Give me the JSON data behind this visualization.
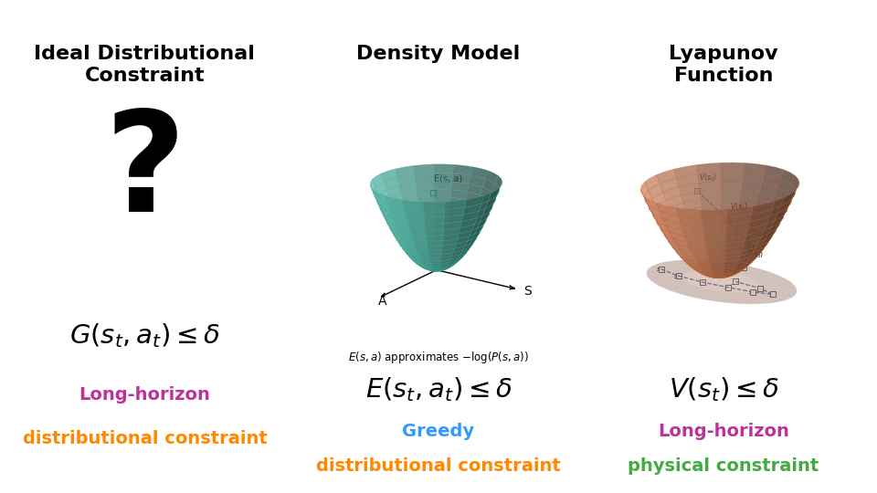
{
  "bg_color": "#ffffff",
  "title1": "Ideal Distributional\nConstraint",
  "title2": "Density Model",
  "title3": "Lyapunov\nFunction",
  "title_fontsize": 16,
  "title_fontweight": "bold",
  "question_mark": "?",
  "question_fontsize": 110,
  "formula1": "$G(s_t, a_t) \\leq \\delta$",
  "formula2": "$E(s_t, a_t) \\leq \\delta$",
  "formula3": "$V(s_t) \\leq \\delta$",
  "formula_fontsize": 21,
  "label1_line1": "Long-horizon",
  "label1_line2": "distributional constraint",
  "label1_color1": "#bb3399",
  "label1_color2": "#ff8800",
  "label2_line1": "Greedy",
  "label2_line2": "distributional constraint",
  "label2_color1": "#3399ff",
  "label2_color2": "#ff8800",
  "label3_line1": "Long-horizon",
  "label3_line2": "physical constraint",
  "label3_color1": "#bb3399",
  "label3_color2": "#44aa44",
  "label_fontsize": 14,
  "bowl_teal_color": "#5ecfbe",
  "bowl_teal_edge": "#3aab96",
  "bowl_orange_color": "#e8956d",
  "bowl_orange_edge": "#c06030",
  "annotation_fontsize": 9,
  "axis_label_fontsize": 11,
  "annot_text": "$E(s, a)$ approximates $-\\log(P(s, a))$"
}
